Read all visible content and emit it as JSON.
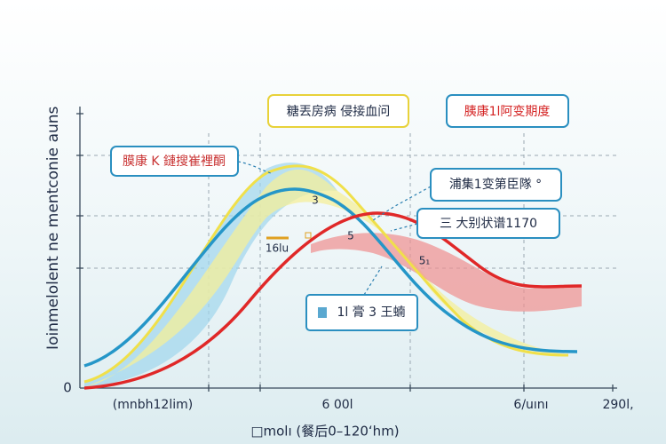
{
  "y_axis": {
    "label": "Ioinmelolent ne mentconie",
    "top": "auns",
    "zero": "0"
  },
  "x_axis": {
    "labels": [
      "(mnbh12lim)",
      "6 00l",
      "6/uını",
      "290l,"
    ],
    "title": "□molı (餐后0–120ʻhm)"
  },
  "callouts": [
    {
      "text": "糖丟房病 侵接血问"
    },
    {
      "text": "胰康1l阿变期度"
    },
    {
      "text": "膜康 K 鏈搜崔裡酮"
    },
    {
      "text": "浦集1变第臣隊 °"
    },
    {
      "text": "三 大别状谱1170"
    },
    {
      "text": "1l 膏 3 王蝻"
    }
  ],
  "marks": [
    "3",
    "16lu",
    "5",
    "5₁"
  ]
}
